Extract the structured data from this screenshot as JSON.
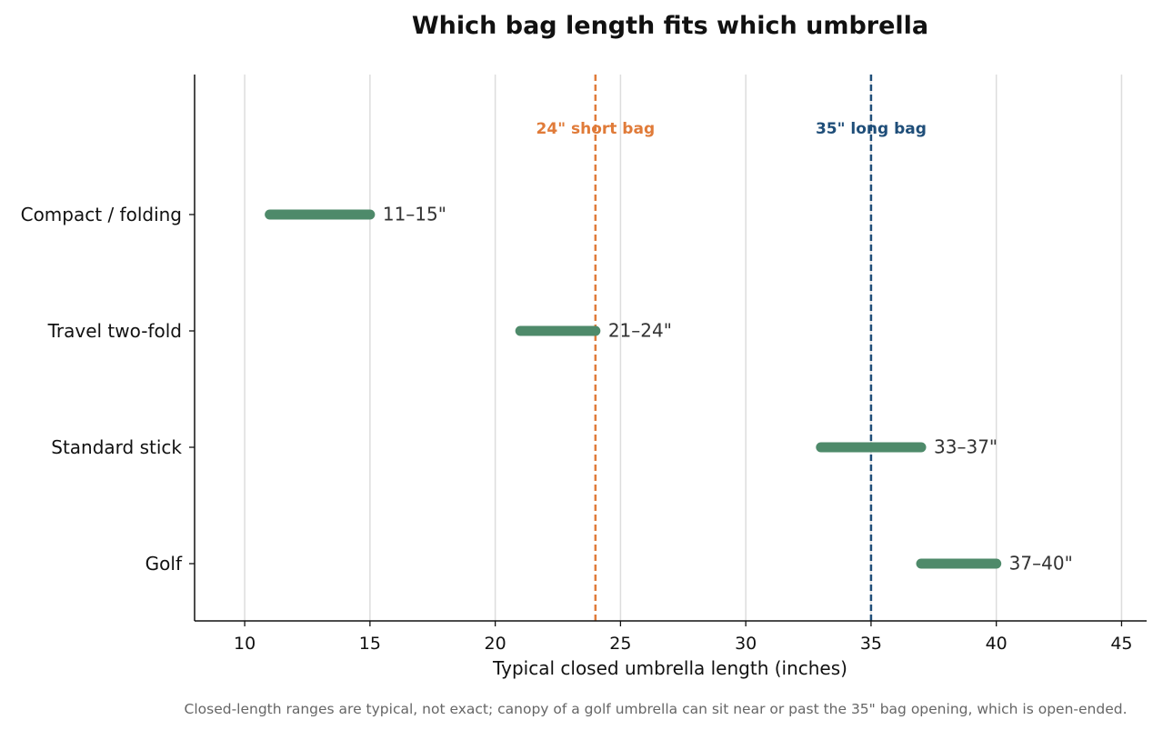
{
  "chart_data": {
    "type": "range",
    "title": "Which bag length fits which umbrella",
    "xlabel": "Typical closed umbrella length (inches)",
    "ylabel": "",
    "xlim": [
      8,
      46
    ],
    "xticks": [
      10,
      15,
      20,
      25,
      30,
      35,
      40,
      45
    ],
    "grid": "vertical",
    "categories": [
      "Compact / folding",
      "Travel two-fold",
      "Standard stick",
      "Golf"
    ],
    "ranges": [
      {
        "category": "Compact / folding",
        "low": 11,
        "high": 15,
        "label": "11–15\""
      },
      {
        "category": "Travel two-fold",
        "low": 21,
        "high": 24,
        "label": "21–24\""
      },
      {
        "category": "Standard stick",
        "low": 33,
        "high": 37,
        "label": "33–37\""
      },
      {
        "category": "Golf",
        "low": 37,
        "high": 40,
        "label": "37–40\""
      }
    ],
    "reference_lines": [
      {
        "x": 24,
        "label": "24\" short bag",
        "color": "#e07b39",
        "style": "dashed"
      },
      {
        "x": 35,
        "label": "35\" long bag",
        "color": "#1f4e79",
        "style": "dashed"
      }
    ],
    "colors": {
      "bar": "#4e8a6a",
      "grid": "#dddddd",
      "axis": "#111111"
    },
    "footnote": "Closed-length ranges are typical, not exact; canopy of a golf umbrella can sit near or past the 35\" bag opening, which is open-ended."
  }
}
